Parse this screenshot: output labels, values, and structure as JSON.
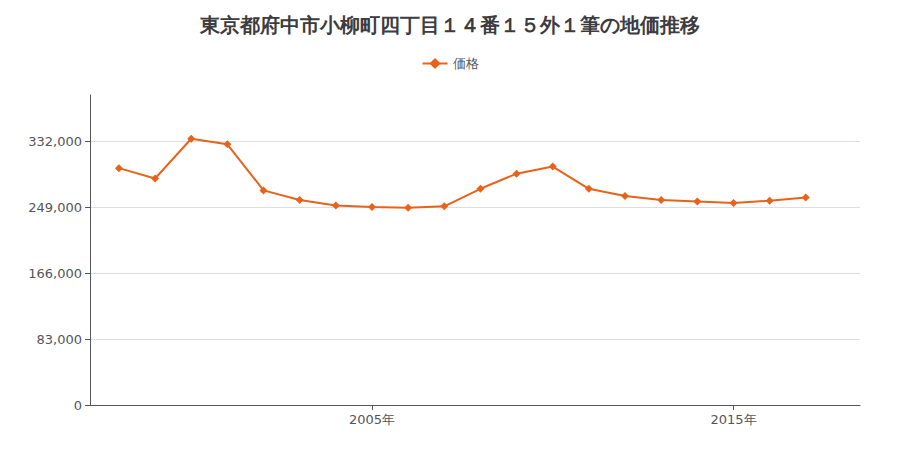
{
  "chart_data": {
    "type": "line",
    "title": "東京都府中市小柳町四丁目１４番１５外１筆の地価推移",
    "x": [
      1998,
      1999,
      2000,
      2001,
      2002,
      2003,
      2004,
      2005,
      2006,
      2007,
      2008,
      2009,
      2010,
      2011,
      2012,
      2013,
      2014,
      2015,
      2016,
      2017
    ],
    "series": [
      {
        "name": "価格",
        "color": "#e8621a",
        "marker": "diamond",
        "values": [
          298000,
          285000,
          335000,
          328000,
          270000,
          258000,
          251000,
          249000,
          248000,
          250000,
          272000,
          291000,
          300000,
          272000,
          263000,
          258000,
          256000,
          254000,
          257000,
          261000
        ]
      }
    ],
    "xlim": [
      1997.2,
      2018.5
    ],
    "xticks": [
      {
        "value": 2005,
        "label": "2005年"
      },
      {
        "value": 2015,
        "label": "2015年"
      }
    ],
    "ylim": [
      0,
      390000
    ],
    "yticks": [
      0,
      {
        "value": 83000,
        "label": "83,000"
      },
      {
        "value": 166000,
        "label": "166,000"
      },
      {
        "value": 249000,
        "label": "249,000"
      },
      {
        "value": 332000,
        "label": "332,000"
      }
    ],
    "grid": true,
    "legend": "top"
  }
}
